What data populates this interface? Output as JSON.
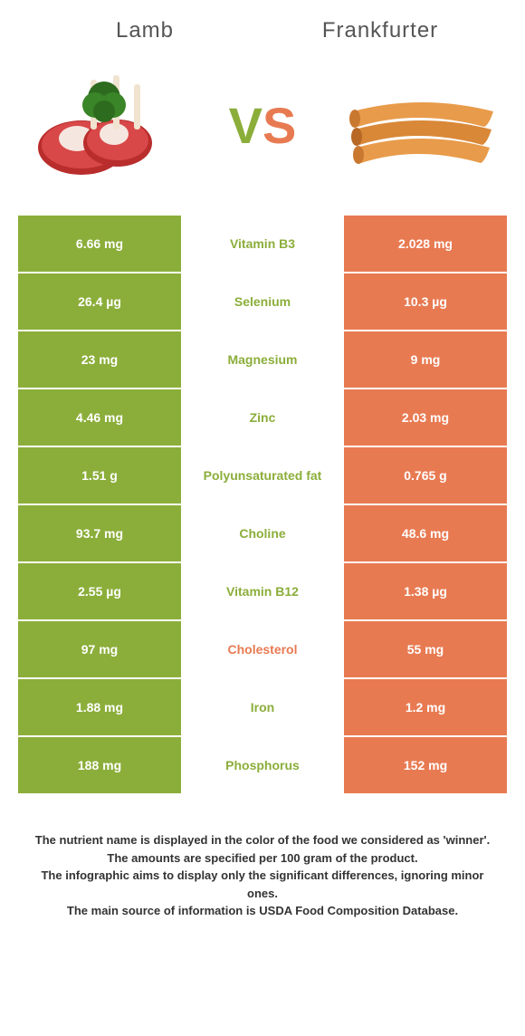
{
  "header": {
    "left_title": "Lamb",
    "right_title": "Frankfurter"
  },
  "vs": {
    "v": "V",
    "s": "S"
  },
  "colors": {
    "green": "#8bae3a",
    "orange": "#e87a52"
  },
  "rows": [
    {
      "left": "6.66 mg",
      "mid": "Vitamin B3",
      "winner": "green",
      "right": "2.028 mg"
    },
    {
      "left": "26.4 µg",
      "mid": "Selenium",
      "winner": "green",
      "right": "10.3 µg"
    },
    {
      "left": "23 mg",
      "mid": "Magnesium",
      "winner": "green",
      "right": "9 mg"
    },
    {
      "left": "4.46 mg",
      "mid": "Zinc",
      "winner": "green",
      "right": "2.03 mg"
    },
    {
      "left": "1.51 g",
      "mid": "Polyunsaturated fat",
      "winner": "green",
      "right": "0.765 g"
    },
    {
      "left": "93.7 mg",
      "mid": "Choline",
      "winner": "green",
      "right": "48.6 mg"
    },
    {
      "left": "2.55 µg",
      "mid": "Vitamin B12",
      "winner": "green",
      "right": "1.38 µg"
    },
    {
      "left": "97 mg",
      "mid": "Cholesterol",
      "winner": "orange",
      "right": "55 mg"
    },
    {
      "left": "1.88 mg",
      "mid": "Iron",
      "winner": "green",
      "right": "1.2 mg"
    },
    {
      "left": "188 mg",
      "mid": "Phosphorus",
      "winner": "green",
      "right": "152 mg"
    }
  ],
  "footer": {
    "line1": "The nutrient name is displayed in the color of the food we considered as 'winner'.",
    "line2": "The amounts are specified per 100 gram of the product.",
    "line3": "The infographic aims to display only the significant differences, ignoring minor ones.",
    "line4": "The main source of information is USDA Food Composition Database."
  }
}
